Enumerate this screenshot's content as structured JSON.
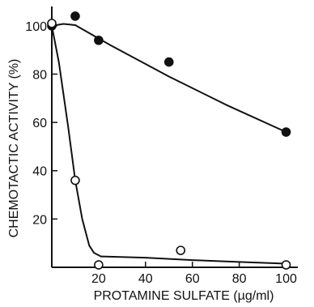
{
  "chart_data": {
    "type": "scatter",
    "xlabel": "PROTAMINE SULFATE (µg/ml)",
    "ylabel": "CHEMOTACTIC ACTIVITY (%)",
    "xlim": [
      0,
      105
    ],
    "ylim": [
      0,
      108
    ],
    "x_ticks": [
      20,
      40,
      60,
      80,
      100
    ],
    "y_ticks": [
      20,
      40,
      60,
      80,
      100
    ],
    "grid": false,
    "series": [
      {
        "marker": "filled-circle",
        "color": "#111111",
        "points": [
          [
            0,
            100
          ],
          [
            10,
            104
          ],
          [
            20,
            94
          ],
          [
            50,
            85
          ],
          [
            100,
            56
          ]
        ],
        "fit": [
          [
            0,
            100
          ],
          [
            5,
            100.8
          ],
          [
            10,
            100.3
          ],
          [
            15,
            97.5
          ],
          [
            25,
            92
          ],
          [
            50,
            79
          ],
          [
            75,
            67
          ],
          [
            100,
            56
          ]
        ]
      },
      {
        "marker": "open-circle",
        "color": "#111111",
        "points": [
          [
            0,
            101
          ],
          [
            10,
            36
          ],
          [
            20,
            1
          ],
          [
            55,
            7
          ],
          [
            100,
            1
          ]
        ],
        "fit": [
          [
            0,
            100
          ],
          [
            3,
            85
          ],
          [
            7,
            58
          ],
          [
            10,
            36
          ],
          [
            13,
            20
          ],
          [
            16,
            9
          ],
          [
            18,
            6
          ],
          [
            21,
            4.5
          ],
          [
            40,
            4
          ],
          [
            60,
            3
          ],
          [
            80,
            2.2
          ],
          [
            100,
            1.5
          ]
        ]
      }
    ]
  }
}
